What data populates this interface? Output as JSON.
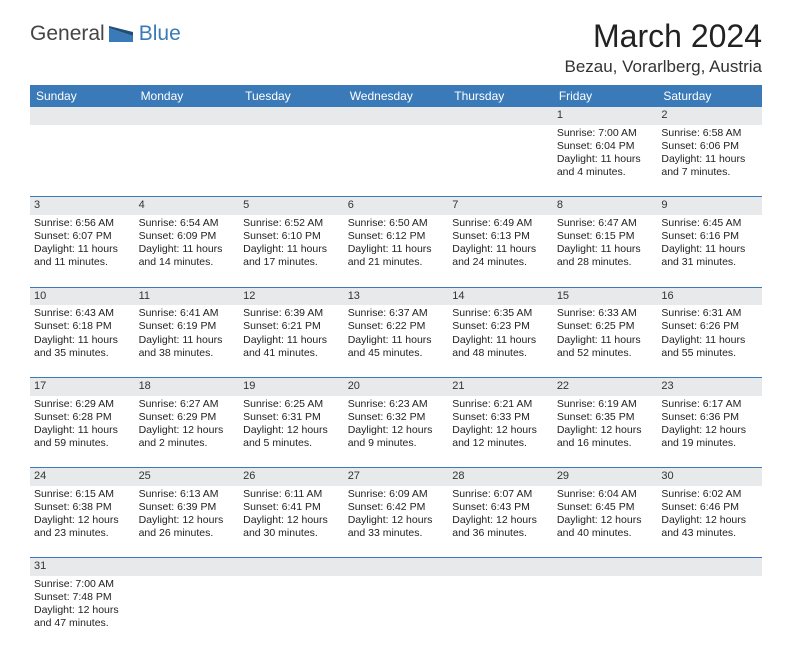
{
  "brand": {
    "part1": "General",
    "part2": "Blue"
  },
  "title": "March 2024",
  "location": "Bezau, Vorarlberg, Austria",
  "colors": {
    "header_bg": "#3a7ab8",
    "header_fg": "#ffffff",
    "daynum_bg": "#e8e9ea",
    "row_border": "#3a7ab8",
    "brand_blue": "#3a7ab8"
  },
  "weekdays": [
    "Sunday",
    "Monday",
    "Tuesday",
    "Wednesday",
    "Thursday",
    "Friday",
    "Saturday"
  ],
  "weeks": [
    [
      null,
      null,
      null,
      null,
      null,
      {
        "n": "1",
        "sr": "Sunrise: 7:00 AM",
        "ss": "Sunset: 6:04 PM",
        "d1": "Daylight: 11 hours",
        "d2": "and 4 minutes."
      },
      {
        "n": "2",
        "sr": "Sunrise: 6:58 AM",
        "ss": "Sunset: 6:06 PM",
        "d1": "Daylight: 11 hours",
        "d2": "and 7 minutes."
      }
    ],
    [
      {
        "n": "3",
        "sr": "Sunrise: 6:56 AM",
        "ss": "Sunset: 6:07 PM",
        "d1": "Daylight: 11 hours",
        "d2": "and 11 minutes."
      },
      {
        "n": "4",
        "sr": "Sunrise: 6:54 AM",
        "ss": "Sunset: 6:09 PM",
        "d1": "Daylight: 11 hours",
        "d2": "and 14 minutes."
      },
      {
        "n": "5",
        "sr": "Sunrise: 6:52 AM",
        "ss": "Sunset: 6:10 PM",
        "d1": "Daylight: 11 hours",
        "d2": "and 17 minutes."
      },
      {
        "n": "6",
        "sr": "Sunrise: 6:50 AM",
        "ss": "Sunset: 6:12 PM",
        "d1": "Daylight: 11 hours",
        "d2": "and 21 minutes."
      },
      {
        "n": "7",
        "sr": "Sunrise: 6:49 AM",
        "ss": "Sunset: 6:13 PM",
        "d1": "Daylight: 11 hours",
        "d2": "and 24 minutes."
      },
      {
        "n": "8",
        "sr": "Sunrise: 6:47 AM",
        "ss": "Sunset: 6:15 PM",
        "d1": "Daylight: 11 hours",
        "d2": "and 28 minutes."
      },
      {
        "n": "9",
        "sr": "Sunrise: 6:45 AM",
        "ss": "Sunset: 6:16 PM",
        "d1": "Daylight: 11 hours",
        "d2": "and 31 minutes."
      }
    ],
    [
      {
        "n": "10",
        "sr": "Sunrise: 6:43 AM",
        "ss": "Sunset: 6:18 PM",
        "d1": "Daylight: 11 hours",
        "d2": "and 35 minutes."
      },
      {
        "n": "11",
        "sr": "Sunrise: 6:41 AM",
        "ss": "Sunset: 6:19 PM",
        "d1": "Daylight: 11 hours",
        "d2": "and 38 minutes."
      },
      {
        "n": "12",
        "sr": "Sunrise: 6:39 AM",
        "ss": "Sunset: 6:21 PM",
        "d1": "Daylight: 11 hours",
        "d2": "and 41 minutes."
      },
      {
        "n": "13",
        "sr": "Sunrise: 6:37 AM",
        "ss": "Sunset: 6:22 PM",
        "d1": "Daylight: 11 hours",
        "d2": "and 45 minutes."
      },
      {
        "n": "14",
        "sr": "Sunrise: 6:35 AM",
        "ss": "Sunset: 6:23 PM",
        "d1": "Daylight: 11 hours",
        "d2": "and 48 minutes."
      },
      {
        "n": "15",
        "sr": "Sunrise: 6:33 AM",
        "ss": "Sunset: 6:25 PM",
        "d1": "Daylight: 11 hours",
        "d2": "and 52 minutes."
      },
      {
        "n": "16",
        "sr": "Sunrise: 6:31 AM",
        "ss": "Sunset: 6:26 PM",
        "d1": "Daylight: 11 hours",
        "d2": "and 55 minutes."
      }
    ],
    [
      {
        "n": "17",
        "sr": "Sunrise: 6:29 AM",
        "ss": "Sunset: 6:28 PM",
        "d1": "Daylight: 11 hours",
        "d2": "and 59 minutes."
      },
      {
        "n": "18",
        "sr": "Sunrise: 6:27 AM",
        "ss": "Sunset: 6:29 PM",
        "d1": "Daylight: 12 hours",
        "d2": "and 2 minutes."
      },
      {
        "n": "19",
        "sr": "Sunrise: 6:25 AM",
        "ss": "Sunset: 6:31 PM",
        "d1": "Daylight: 12 hours",
        "d2": "and 5 minutes."
      },
      {
        "n": "20",
        "sr": "Sunrise: 6:23 AM",
        "ss": "Sunset: 6:32 PM",
        "d1": "Daylight: 12 hours",
        "d2": "and 9 minutes."
      },
      {
        "n": "21",
        "sr": "Sunrise: 6:21 AM",
        "ss": "Sunset: 6:33 PM",
        "d1": "Daylight: 12 hours",
        "d2": "and 12 minutes."
      },
      {
        "n": "22",
        "sr": "Sunrise: 6:19 AM",
        "ss": "Sunset: 6:35 PM",
        "d1": "Daylight: 12 hours",
        "d2": "and 16 minutes."
      },
      {
        "n": "23",
        "sr": "Sunrise: 6:17 AM",
        "ss": "Sunset: 6:36 PM",
        "d1": "Daylight: 12 hours",
        "d2": "and 19 minutes."
      }
    ],
    [
      {
        "n": "24",
        "sr": "Sunrise: 6:15 AM",
        "ss": "Sunset: 6:38 PM",
        "d1": "Daylight: 12 hours",
        "d2": "and 23 minutes."
      },
      {
        "n": "25",
        "sr": "Sunrise: 6:13 AM",
        "ss": "Sunset: 6:39 PM",
        "d1": "Daylight: 12 hours",
        "d2": "and 26 minutes."
      },
      {
        "n": "26",
        "sr": "Sunrise: 6:11 AM",
        "ss": "Sunset: 6:41 PM",
        "d1": "Daylight: 12 hours",
        "d2": "and 30 minutes."
      },
      {
        "n": "27",
        "sr": "Sunrise: 6:09 AM",
        "ss": "Sunset: 6:42 PM",
        "d1": "Daylight: 12 hours",
        "d2": "and 33 minutes."
      },
      {
        "n": "28",
        "sr": "Sunrise: 6:07 AM",
        "ss": "Sunset: 6:43 PM",
        "d1": "Daylight: 12 hours",
        "d2": "and 36 minutes."
      },
      {
        "n": "29",
        "sr": "Sunrise: 6:04 AM",
        "ss": "Sunset: 6:45 PM",
        "d1": "Daylight: 12 hours",
        "d2": "and 40 minutes."
      },
      {
        "n": "30",
        "sr": "Sunrise: 6:02 AM",
        "ss": "Sunset: 6:46 PM",
        "d1": "Daylight: 12 hours",
        "d2": "and 43 minutes."
      }
    ],
    [
      {
        "n": "31",
        "sr": "Sunrise: 7:00 AM",
        "ss": "Sunset: 7:48 PM",
        "d1": "Daylight: 12 hours",
        "d2": "and 47 minutes."
      },
      null,
      null,
      null,
      null,
      null,
      null
    ]
  ]
}
